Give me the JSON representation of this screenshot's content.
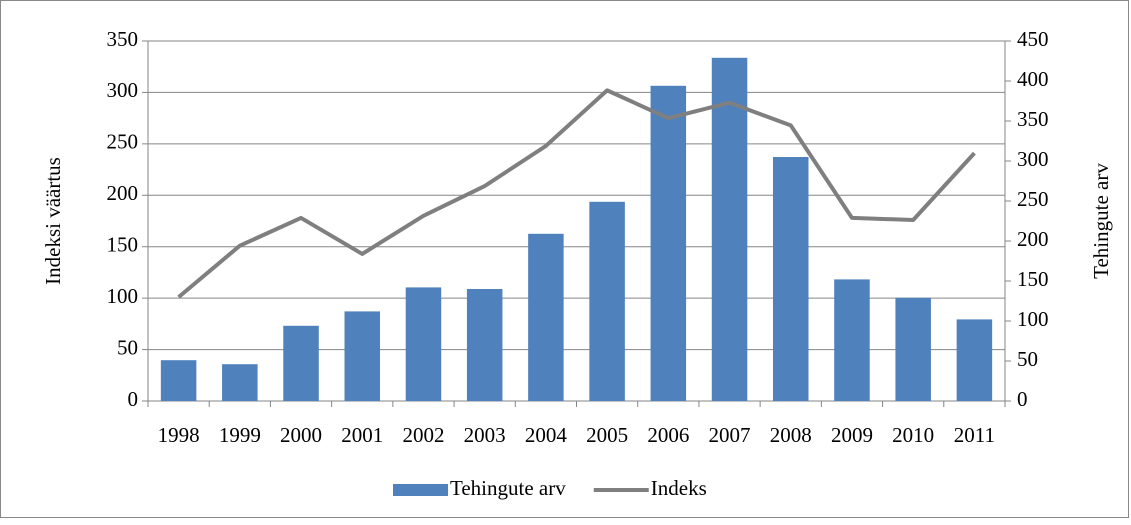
{
  "chart_data": {
    "type": "bar-line",
    "categories": [
      "1998",
      "1999",
      "2000",
      "2001",
      "2002",
      "2003",
      "2004",
      "2005",
      "2006",
      "2007",
      "2008",
      "2009",
      "2010",
      "2011"
    ],
    "ylabel": "Indeksi väärtus",
    "y2label": "Tehingute arv",
    "ylim": [
      0,
      350
    ],
    "yticks": [
      0,
      50,
      100,
      150,
      200,
      250,
      300,
      350
    ],
    "y2lim": [
      0,
      450
    ],
    "y2ticks": [
      0,
      50,
      100,
      150,
      200,
      250,
      300,
      350,
      400,
      450
    ],
    "grid": true,
    "legend": "bottom",
    "series": [
      {
        "name": "Tehingute arv",
        "type": "bar",
        "axis": "y2",
        "color": "#4f81bd",
        "values": [
          51,
          46,
          94,
          112,
          142,
          140,
          209,
          249,
          394,
          429,
          305,
          152,
          129,
          102
        ]
      },
      {
        "name": "Indeks",
        "type": "line",
        "axis": "y",
        "color": "#7f7f7f",
        "values": [
          101,
          151,
          178,
          143,
          180,
          209,
          248,
          302,
          275,
          290,
          268,
          178,
          176,
          241
        ]
      }
    ]
  }
}
